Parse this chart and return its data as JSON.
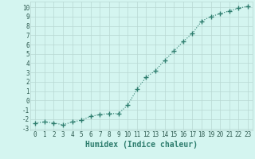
{
  "xlabel": "Humidex (Indice chaleur)",
  "x": [
    0,
    1,
    2,
    3,
    4,
    5,
    6,
    7,
    8,
    9,
    10,
    11,
    12,
    13,
    14,
    15,
    16,
    17,
    18,
    19,
    20,
    21,
    22,
    23
  ],
  "y": [
    -2.4,
    -2.3,
    -2.4,
    -2.6,
    -2.3,
    -2.1,
    -1.7,
    -1.5,
    -1.4,
    -1.4,
    -0.5,
    1.2,
    2.5,
    3.2,
    4.3,
    5.3,
    6.3,
    7.2,
    8.5,
    9.0,
    9.3,
    9.6,
    9.9,
    10.1
  ],
  "line_color": "#2e7d6e",
  "marker": "+",
  "markersize": 4.0,
  "linewidth": 0.8,
  "linestyle": ":",
  "xlim": [
    -0.5,
    23.5
  ],
  "ylim": [
    -3.2,
    10.6
  ],
  "yticks": [
    -3,
    -2,
    -1,
    0,
    1,
    2,
    3,
    4,
    5,
    6,
    7,
    8,
    9,
    10
  ],
  "xticks": [
    0,
    1,
    2,
    3,
    4,
    5,
    6,
    7,
    8,
    9,
    10,
    11,
    12,
    13,
    14,
    15,
    16,
    17,
    18,
    19,
    20,
    21,
    22,
    23
  ],
  "bg_color": "#d4f5f0",
  "grid_color": "#b8d8d2",
  "tick_fontsize": 5.5,
  "xlabel_fontsize": 7,
  "xlabel_color": "#2e7d6e"
}
